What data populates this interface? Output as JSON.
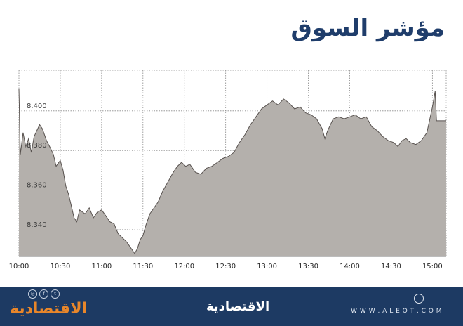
{
  "title": "مؤشر السوق",
  "colors": {
    "fill": "#b4b0ac",
    "line": "#58524f",
    "grid": "#8a8a8a",
    "title": "#1f3d6b",
    "footer_bg": "#1d3a63",
    "logo_accent": "#e8862a"
  },
  "footer": {
    "logo": "الاقتصادية",
    "center_logo": "الاقتصادية",
    "url": "W W W . A L E Q T . C O M",
    "social_icons": [
      "instagram-icon",
      "facebook-icon",
      "twitter-icon"
    ],
    "seal_icon": "seal-icon"
  },
  "chart_data": {
    "type": "area",
    "title": "مؤشر السوق",
    "xlabel": "",
    "ylabel": "",
    "x_ticks": [
      "10:00",
      "10:30",
      "11:00",
      "11:30",
      "12:00",
      "12:30",
      "13:00",
      "13:30",
      "14:00",
      "14:30",
      "15:00"
    ],
    "y_ticks": [
      8.34,
      8.36,
      8.38,
      8.4
    ],
    "y_tick_labels": [
      "8.340",
      "8.360",
      "8.380",
      "8.400"
    ],
    "xlim": [
      "10:00",
      "15:10"
    ],
    "ylim": [
      8.3265,
      8.4205
    ],
    "grid": true,
    "series": [
      {
        "points": [
          [
            "10:00",
            8.411
          ],
          [
            "10:01",
            8.378
          ],
          [
            "10:03",
            8.389
          ],
          [
            "10:05",
            8.382
          ],
          [
            "10:07",
            8.386
          ],
          [
            "10:09",
            8.379
          ],
          [
            "10:11",
            8.387
          ],
          [
            "10:13",
            8.39
          ],
          [
            "10:15",
            8.393
          ],
          [
            "10:17",
            8.391
          ],
          [
            "10:20",
            8.385
          ],
          [
            "10:23",
            8.381
          ],
          [
            "10:25",
            8.378
          ],
          [
            "10:27",
            8.372
          ],
          [
            "10:30",
            8.375
          ],
          [
            "10:32",
            8.37
          ],
          [
            "10:34",
            8.362
          ],
          [
            "10:36",
            8.358
          ],
          [
            "10:38",
            8.352
          ],
          [
            "10:40",
            8.346
          ],
          [
            "10:42",
            8.344
          ],
          [
            "10:44",
            8.35
          ],
          [
            "10:46",
            8.349
          ],
          [
            "10:48",
            8.348
          ],
          [
            "10:51",
            8.351
          ],
          [
            "10:54",
            8.346
          ],
          [
            "10:57",
            8.349
          ],
          [
            "11:00",
            8.35
          ],
          [
            "11:03",
            8.347
          ],
          [
            "11:06",
            8.344
          ],
          [
            "11:09",
            8.343
          ],
          [
            "11:12",
            8.338
          ],
          [
            "11:15",
            8.336
          ],
          [
            "11:18",
            8.334
          ],
          [
            "11:21",
            8.331
          ],
          [
            "11:24",
            8.328
          ],
          [
            "11:26",
            8.3305
          ],
          [
            "11:28",
            8.335
          ],
          [
            "11:30",
            8.337
          ],
          [
            "11:32",
            8.342
          ],
          [
            "11:35",
            8.348
          ],
          [
            "11:38",
            8.351
          ],
          [
            "11:41",
            8.354
          ],
          [
            "11:44",
            8.359
          ],
          [
            "11:48",
            8.364
          ],
          [
            "11:52",
            8.369
          ],
          [
            "11:55",
            8.372
          ],
          [
            "11:58",
            8.374
          ],
          [
            "12:01",
            8.372
          ],
          [
            "12:04",
            8.373
          ],
          [
            "12:08",
            8.369
          ],
          [
            "12:12",
            8.368
          ],
          [
            "12:16",
            8.371
          ],
          [
            "12:20",
            8.372
          ],
          [
            "12:24",
            8.374
          ],
          [
            "12:28",
            8.376
          ],
          [
            "12:32",
            8.377
          ],
          [
            "12:36",
            8.379
          ],
          [
            "12:40",
            8.384
          ],
          [
            "12:44",
            8.388
          ],
          [
            "12:48",
            8.393
          ],
          [
            "12:52",
            8.397
          ],
          [
            "12:56",
            8.401
          ],
          [
            "13:00",
            8.403
          ],
          [
            "13:04",
            8.405
          ],
          [
            "13:08",
            8.403
          ],
          [
            "13:12",
            8.406
          ],
          [
            "13:16",
            8.404
          ],
          [
            "13:20",
            8.401
          ],
          [
            "13:24",
            8.402
          ],
          [
            "13:28",
            8.399
          ],
          [
            "13:32",
            8.398
          ],
          [
            "13:36",
            8.396
          ],
          [
            "13:40",
            8.391
          ],
          [
            "13:42",
            8.386
          ],
          [
            "13:44",
            8.39
          ],
          [
            "13:48",
            8.396
          ],
          [
            "13:52",
            8.397
          ],
          [
            "13:56",
            8.396
          ],
          [
            "14:00",
            8.397
          ],
          [
            "14:04",
            8.398
          ],
          [
            "14:08",
            8.396
          ],
          [
            "14:12",
            8.397
          ],
          [
            "14:16",
            8.392
          ],
          [
            "14:20",
            8.39
          ],
          [
            "14:24",
            8.387
          ],
          [
            "14:28",
            8.385
          ],
          [
            "14:32",
            8.384
          ],
          [
            "14:35",
            8.382
          ],
          [
            "14:38",
            8.385
          ],
          [
            "14:41",
            8.386
          ],
          [
            "14:44",
            8.384
          ],
          [
            "14:48",
            8.383
          ],
          [
            "14:52",
            8.385
          ],
          [
            "14:56",
            8.389
          ],
          [
            "15:00",
            8.402
          ],
          [
            "15:02",
            8.41
          ],
          [
            "15:03",
            8.395
          ],
          [
            "15:10",
            8.395
          ]
        ]
      }
    ]
  }
}
